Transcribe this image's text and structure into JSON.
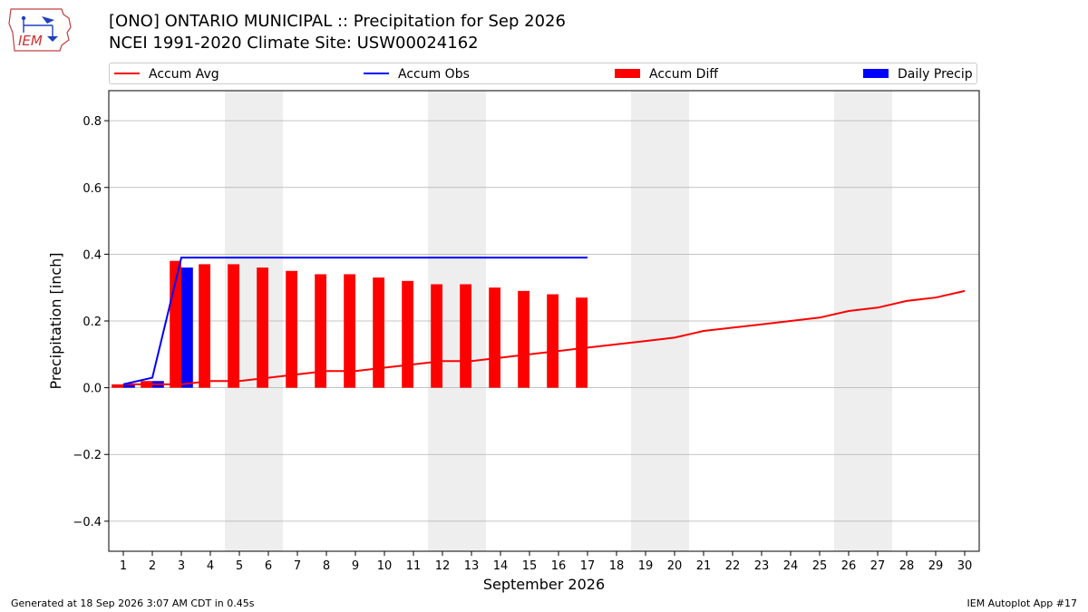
{
  "header": {
    "logo_text": "IEM",
    "title_line1": "[ONO] ONTARIO MUNICIPAL :: Precipitation for Sep 2026",
    "title_line2": "NCEI 1991-2020 Climate Site: USW00024162"
  },
  "footer": {
    "generated": "Generated at 18 Sep 2026 3:07 AM CDT in 0.45s",
    "app": "IEM Autoplot App #17"
  },
  "colors": {
    "accum_avg": "#ff0000",
    "accum_obs": "#0000ff",
    "accum_diff": "#ff0000",
    "daily_precip": "#0000ff",
    "weekend_band": "#eeeeee",
    "grid": "#b0b0b0"
  },
  "chart_data": {
    "type": "bar",
    "xlabel": "September 2026",
    "ylabel": "Precipitation [inch]",
    "ylim": [
      -0.49,
      0.89
    ],
    "yticks": [
      -0.4,
      -0.2,
      0.0,
      0.2,
      0.4,
      0.6,
      0.8
    ],
    "ytick_labels": [
      "−0.4",
      "−0.2",
      "0.0",
      "0.2",
      "0.4",
      "0.6",
      "0.8"
    ],
    "xlim": [
      0.5,
      30.5
    ],
    "days": [
      1,
      2,
      3,
      4,
      5,
      6,
      7,
      8,
      9,
      10,
      11,
      12,
      13,
      14,
      15,
      16,
      17,
      18,
      19,
      20,
      21,
      22,
      23,
      24,
      25,
      26,
      27,
      28,
      29,
      30
    ],
    "weekend_days": [
      5,
      6,
      12,
      13,
      19,
      20,
      26,
      27
    ],
    "grid": "horizontal",
    "legend_placement": "top",
    "series": [
      {
        "name": "Accum Avg",
        "kind": "line",
        "x": [
          1,
          2,
          3,
          4,
          5,
          6,
          7,
          8,
          9,
          10,
          11,
          12,
          13,
          14,
          15,
          16,
          17,
          18,
          19,
          20,
          21,
          22,
          23,
          24,
          25,
          26,
          27,
          28,
          29,
          30
        ],
        "values": [
          0.01,
          0.01,
          0.01,
          0.02,
          0.02,
          0.03,
          0.04,
          0.05,
          0.05,
          0.06,
          0.07,
          0.08,
          0.08,
          0.09,
          0.1,
          0.11,
          0.12,
          0.13,
          0.14,
          0.15,
          0.17,
          0.18,
          0.19,
          0.2,
          0.21,
          0.23,
          0.24,
          0.26,
          0.27,
          0.29
        ]
      },
      {
        "name": "Accum Obs",
        "kind": "line",
        "x": [
          1,
          2,
          3,
          4,
          5,
          6,
          7,
          8,
          9,
          10,
          11,
          12,
          13,
          14,
          15,
          16,
          17
        ],
        "values": [
          0.01,
          0.03,
          0.39,
          0.39,
          0.39,
          0.39,
          0.39,
          0.39,
          0.39,
          0.39,
          0.39,
          0.39,
          0.39,
          0.39,
          0.39,
          0.39,
          0.39
        ]
      },
      {
        "name": "Accum Diff",
        "kind": "bar",
        "x": [
          1,
          2,
          3,
          4,
          5,
          6,
          7,
          8,
          9,
          10,
          11,
          12,
          13,
          14,
          15,
          16,
          17
        ],
        "values": [
          0.01,
          0.02,
          0.38,
          0.37,
          0.37,
          0.36,
          0.35,
          0.34,
          0.34,
          0.33,
          0.32,
          0.31,
          0.31,
          0.3,
          0.29,
          0.28,
          0.27
        ]
      },
      {
        "name": "Daily Precip",
        "kind": "bar",
        "x": [
          1,
          2,
          3,
          4,
          5,
          6,
          7,
          8,
          9,
          10,
          11,
          12,
          13,
          14,
          15,
          16,
          17
        ],
        "values": [
          0.01,
          0.02,
          0.36,
          0,
          0,
          0,
          0,
          0,
          0,
          0,
          0,
          0,
          0,
          0,
          0,
          0,
          0
        ]
      }
    ]
  }
}
